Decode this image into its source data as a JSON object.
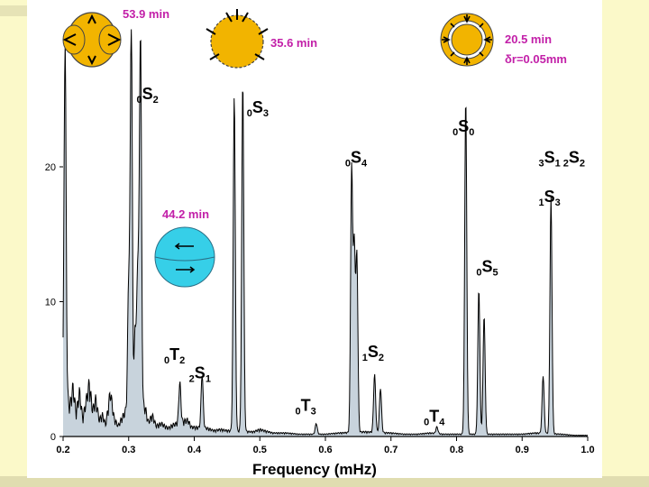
{
  "chart_data": {
    "type": "line",
    "xlabel": "Frequency (mHz)",
    "ylabel": "",
    "xlim": [
      0.2,
      1.0
    ],
    "ylim": [
      0,
      28
    ],
    "x_ticks": [
      "0.2",
      "0.3",
      "0.4",
      "0.5",
      "0.6",
      "0.7",
      "0.8",
      "0.9",
      "1.0"
    ],
    "y_ticks": [
      "0",
      "10",
      "20"
    ],
    "grid": false,
    "fill_color": "#c8d3dc",
    "line_color": "#000000",
    "peaks": [
      {
        "x": 0.203,
        "y": 26.5
      },
      {
        "x": 0.3,
        "y": 9.5
      },
      {
        "x": 0.304,
        "y": 29
      },
      {
        "x": 0.31,
        "y": 6
      },
      {
        "x": 0.314,
        "y": 10.5
      },
      {
        "x": 0.318,
        "y": 28
      },
      {
        "x": 0.378,
        "y": 3
      },
      {
        "x": 0.412,
        "y": 4
      },
      {
        "x": 0.461,
        "y": 25
      },
      {
        "x": 0.474,
        "y": 26
      },
      {
        "x": 0.586,
        "y": 0.8
      },
      {
        "x": 0.64,
        "y": 19.5
      },
      {
        "x": 0.644,
        "y": 13.5
      },
      {
        "x": 0.648,
        "y": 13
      },
      {
        "x": 0.675,
        "y": 4.3
      },
      {
        "x": 0.684,
        "y": 3.3
      },
      {
        "x": 0.77,
        "y": 0.5
      },
      {
        "x": 0.814,
        "y": 25
      },
      {
        "x": 0.834,
        "y": 10.8
      },
      {
        "x": 0.842,
        "y": 8.8
      },
      {
        "x": 0.932,
        "y": 4.3
      },
      {
        "x": 0.944,
        "y": 17.5
      }
    ],
    "noise": [
      {
        "x": 0.205,
        "y": 3.5
      },
      {
        "x": 0.21,
        "y": 2.5
      },
      {
        "x": 0.215,
        "y": 4.2
      },
      {
        "x": 0.22,
        "y": 2.0
      },
      {
        "x": 0.225,
        "y": 3.8
      },
      {
        "x": 0.23,
        "y": 1.5
      },
      {
        "x": 0.235,
        "y": 3.0
      },
      {
        "x": 0.24,
        "y": 4.5
      },
      {
        "x": 0.245,
        "y": 2.2
      },
      {
        "x": 0.25,
        "y": 3.2
      },
      {
        "x": 0.255,
        "y": 1.4
      },
      {
        "x": 0.26,
        "y": 1.8
      },
      {
        "x": 0.265,
        "y": 1.0
      },
      {
        "x": 0.272,
        "y": 3.8
      },
      {
        "x": 0.278,
        "y": 1.5
      },
      {
        "x": 0.284,
        "y": 0.9
      },
      {
        "x": 0.29,
        "y": 1.6
      },
      {
        "x": 0.296,
        "y": 2.2
      },
      {
        "x": 0.325,
        "y": 2.5
      },
      {
        "x": 0.33,
        "y": 1.2
      },
      {
        "x": 0.336,
        "y": 1.8
      },
      {
        "x": 0.342,
        "y": 0.9
      },
      {
        "x": 0.35,
        "y": 1.1
      },
      {
        "x": 0.36,
        "y": 0.7
      },
      {
        "x": 0.368,
        "y": 1.0
      },
      {
        "x": 0.39,
        "y": 1.4
      },
      {
        "x": 0.396,
        "y": 0.8
      },
      {
        "x": 0.42,
        "y": 0.7
      },
      {
        "x": 0.43,
        "y": 0.5
      },
      {
        "x": 0.44,
        "y": 0.6
      },
      {
        "x": 0.45,
        "y": 0.5
      },
      {
        "x": 0.49,
        "y": 0.4
      },
      {
        "x": 0.5,
        "y": 0.6
      },
      {
        "x": 0.52,
        "y": 0.3
      },
      {
        "x": 0.54,
        "y": 0.3
      },
      {
        "x": 0.56,
        "y": 0.2
      },
      {
        "x": 0.6,
        "y": 0.2
      },
      {
        "x": 0.62,
        "y": 0.3
      },
      {
        "x": 0.66,
        "y": 0.4
      },
      {
        "x": 0.7,
        "y": 0.3
      },
      {
        "x": 0.72,
        "y": 0.2
      },
      {
        "x": 0.74,
        "y": 0.2
      },
      {
        "x": 0.76,
        "y": 0.3
      },
      {
        "x": 0.78,
        "y": 0.2
      },
      {
        "x": 0.8,
        "y": 0.2
      },
      {
        "x": 0.86,
        "y": 0.2
      },
      {
        "x": 0.88,
        "y": 0.2
      },
      {
        "x": 0.9,
        "y": 0.2
      },
      {
        "x": 0.92,
        "y": 0.3
      },
      {
        "x": 0.96,
        "y": 0.2
      },
      {
        "x": 0.98,
        "y": 0.1
      }
    ],
    "annotations": [
      {
        "sub": "0",
        "main": "S",
        "sub2": "2",
        "x": 0.312,
        "y": 25
      },
      {
        "sub": "0",
        "main": "S",
        "sub2": "3",
        "x": 0.48,
        "y": 24
      },
      {
        "sub": "0",
        "main": "S",
        "sub2": "4",
        "x": 0.63,
        "y": 20.3
      },
      {
        "sub": "0",
        "main": "S",
        "sub2": "0",
        "x": 0.794,
        "y": 22.6
      },
      {
        "sub": "3",
        "main": "S",
        "sub2": "1",
        "x": 0.925,
        "y": 20.3,
        "extra_sub": "2",
        "extra_main": "S",
        "extra_sub2": "2"
      },
      {
        "sub": "1",
        "main": "S",
        "sub2": "3",
        "x": 0.925,
        "y": 17.4
      },
      {
        "sub": "0",
        "main": "S",
        "sub2": "5",
        "x": 0.83,
        "y": 12.2
      },
      {
        "sub": "0",
        "main": "T",
        "sub2": "2",
        "x": 0.354,
        "y": 5.7
      },
      {
        "sub": "2",
        "main": "S",
        "sub2": "1",
        "x": 0.392,
        "y": 4.3
      },
      {
        "sub": "1",
        "main": "S",
        "sub2": "2",
        "x": 0.656,
        "y": 5.9
      },
      {
        "sub": "0",
        "main": "T",
        "sub2": "3",
        "x": 0.554,
        "y": 1.9
      },
      {
        "sub": "0",
        "main": "T",
        "sub2": "4",
        "x": 0.75,
        "y": 1.1
      }
    ],
    "mode_periods": [
      {
        "text": "53.9 min",
        "color": "#c21fa8"
      },
      {
        "text": "35.6 min",
        "color": "#c21fa8"
      },
      {
        "text": "44.2 min",
        "color": "#c21fa8"
      },
      {
        "text": "20.5 min",
        "color": "#c21fa8"
      },
      {
        "text": "δr=0.05mm",
        "color": "#c21fa8"
      }
    ]
  }
}
